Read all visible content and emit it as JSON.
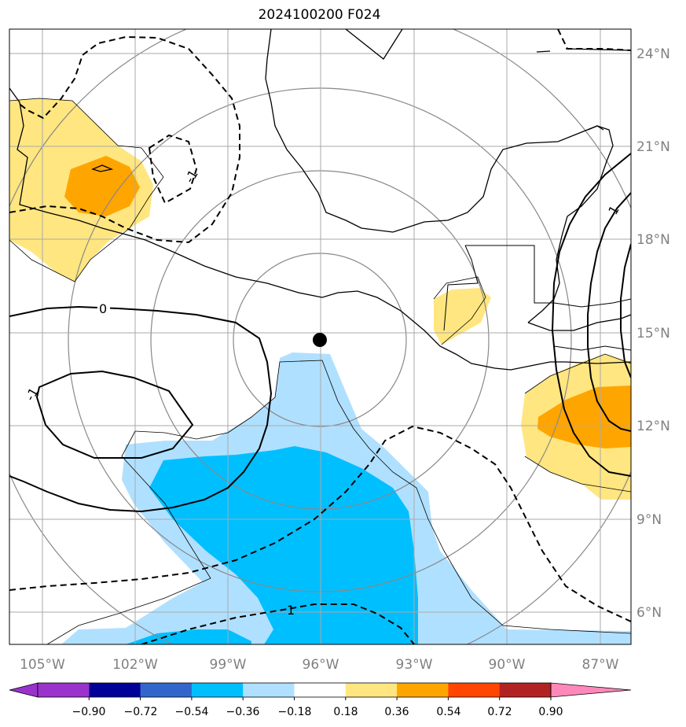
{
  "title": "2024100200 F024",
  "map": {
    "center_marker": {
      "lon": -96,
      "lat": 14.8
    },
    "latitude_labels": [
      {
        "lat": 24,
        "text": "24°N"
      },
      {
        "lat": 21,
        "text": "21°N"
      },
      {
        "lat": 18,
        "text": "18°N"
      },
      {
        "lat": 15,
        "text": "15°N"
      },
      {
        "lat": 12,
        "text": "12°N"
      },
      {
        "lat": 9,
        "text": "9°N"
      },
      {
        "lat": 6,
        "text": "6°N"
      }
    ],
    "longitude_labels": [
      {
        "lon": -105,
        "text": "105°W"
      },
      {
        "lon": -102,
        "text": "102°W"
      },
      {
        "lon": -99,
        "text": "99°W"
      },
      {
        "lon": -96,
        "text": "96°W"
      },
      {
        "lon": -93,
        "text": "93°W"
      },
      {
        "lon": -90,
        "text": "90°W"
      },
      {
        "lon": -87,
        "text": "87°W"
      }
    ],
    "contour_labels": [
      {
        "text": "0"
      },
      {
        "text": "1"
      },
      {
        "text": "-1"
      },
      {
        "text": "1"
      },
      {
        "text": "-1"
      }
    ]
  },
  "colorbar": {
    "colors": [
      "#9933cc",
      "#000099",
      "#3366cc",
      "#00bfff",
      "#b0e0ff",
      "#ffffff",
      "#ffe680",
      "#ffa500",
      "#ff4500",
      "#b22222",
      "#ff88bb"
    ],
    "over_color": "#ff88bb",
    "under_color": "#9933cc",
    "ticks": [
      "−0.90",
      "−0.72",
      "−0.54",
      "−0.36",
      "−0.18",
      "0.18",
      "0.36",
      "0.54",
      "0.72",
      "0.90"
    ]
  }
}
